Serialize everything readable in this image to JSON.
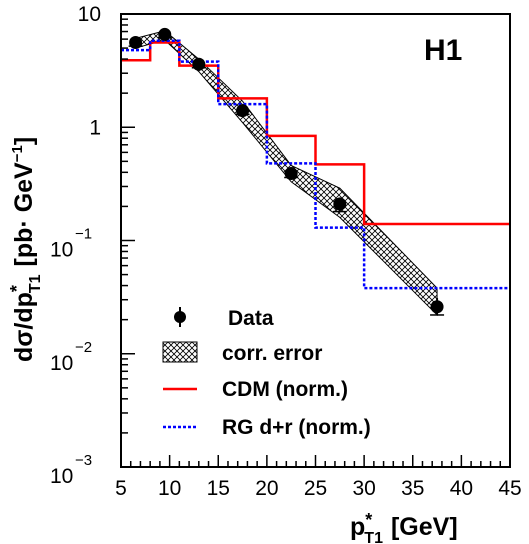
{
  "chart_data": {
    "type": "line",
    "experiment_label": "H1",
    "xlabel": {
      "main": "p",
      "star": "*",
      "sub": "T1",
      "unit": "[GeV]"
    },
    "ylabel": {
      "main": "dσ/dp",
      "star": "*",
      "sub": "T1",
      "unit_open": "[pb· GeV",
      "unit_exp": "−1",
      "unit_close": "]"
    },
    "xlim": [
      5,
      45
    ],
    "ylim": [
      0.001,
      10
    ],
    "yscale": "log",
    "x_ticks": [
      5,
      10,
      15,
      20,
      25,
      30,
      35,
      40,
      45
    ],
    "y_ticks": [
      {
        "value": 10,
        "base": "10",
        "exp": ""
      },
      {
        "value": 1,
        "base": "1",
        "exp": ""
      },
      {
        "value": 0.1,
        "base": "10",
        "exp": "−1"
      },
      {
        "value": 0.01,
        "base": "10",
        "exp": "−2"
      },
      {
        "value": 0.001,
        "base": "10",
        "exp": "−3"
      }
    ],
    "bin_edges": [
      5,
      8,
      11,
      15,
      20,
      25,
      30,
      45
    ],
    "series": [
      {
        "name": "Data",
        "kind": "points",
        "color": "#000000",
        "x": [
          6.5,
          9.5,
          13,
          17.5,
          22.5,
          27.5,
          37.5
        ],
        "y": [
          5.6,
          6.6,
          3.6,
          1.4,
          0.39,
          0.21,
          0.026
        ],
        "y_err_low": [
          5.2,
          6.2,
          3.35,
          1.3,
          0.36,
          0.18,
          0.022
        ],
        "y_err_high": [
          6.0,
          7.0,
          3.9,
          1.5,
          0.42,
          0.24,
          0.031
        ]
      },
      {
        "name": "corr. error",
        "kind": "band",
        "color": "#000000",
        "x": [
          6.5,
          9.5,
          13,
          17.5,
          22.5,
          27.5,
          37.5
        ],
        "low": [
          5.0,
          5.9,
          3.1,
          1.1,
          0.33,
          0.16,
          0.022
        ],
        "high": [
          6.1,
          7.1,
          4.0,
          1.7,
          0.46,
          0.29,
          0.038
        ]
      },
      {
        "name": "CDM (norm.)",
        "kind": "step",
        "color": "#ff0000",
        "dash": "solid",
        "values": [
          3.9,
          5.6,
          3.5,
          1.8,
          0.84,
          0.47,
          0.14
        ]
      },
      {
        "name": "RG d+r (norm.)",
        "kind": "step",
        "color": "#0000ff",
        "dash": "dotted",
        "values": [
          4.8,
          5.8,
          3.8,
          1.6,
          0.48,
          0.13,
          0.038
        ]
      }
    ],
    "legend": {
      "placement": "bottom-left",
      "entries": [
        "Data",
        "corr. error",
        "CDM (norm.)",
        "RG d+r (norm.)"
      ]
    },
    "grid": false
  }
}
